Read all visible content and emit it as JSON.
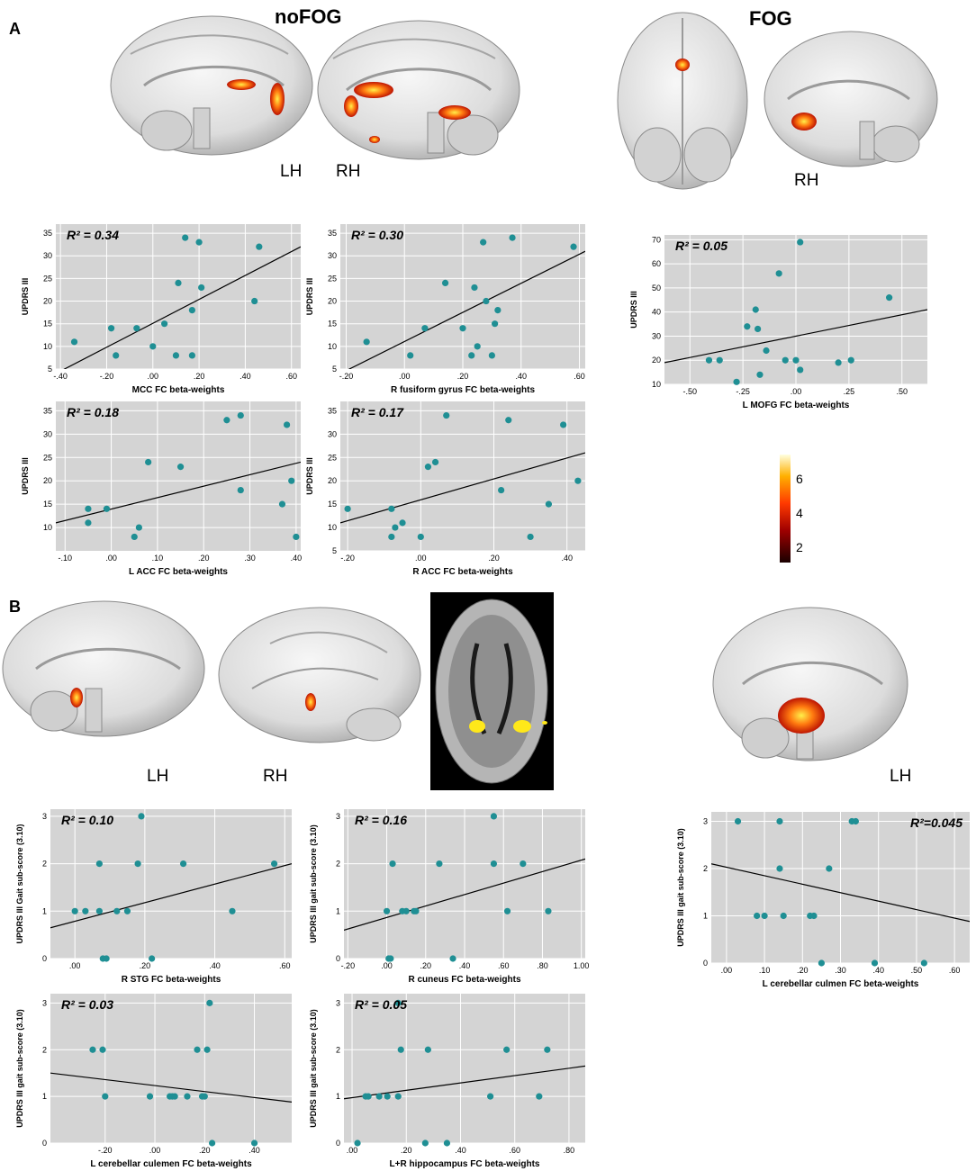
{
  "panel_a": {
    "letter": "A",
    "nofog_title": "noFOG",
    "fog_title": "FOG",
    "nofog_hemis": [
      "LH",
      "RH"
    ],
    "fog_hemi": "RH",
    "colorbar_ticks": [
      "6",
      "4",
      "2"
    ]
  },
  "panel_b": {
    "letter": "B",
    "nofog_hemis": [
      "LH",
      "RH"
    ],
    "fog_hemi": "LH"
  },
  "colors": {
    "point": "#1f8f94",
    "plot_bg": "#d4d4d4",
    "grid": "#ffffff",
    "fit_line": "#000000"
  },
  "chart_data": [
    {
      "id": "a1",
      "type": "scatter",
      "r2_label": "R² = 0.34",
      "r2_pos": "top-left",
      "xlabel": "MCC  FC beta-weights",
      "ylabel": "UPDRS III",
      "xlim": [
        -0.42,
        0.64
      ],
      "ylim": [
        5,
        37
      ],
      "xticks": [
        -0.4,
        -0.2,
        0.0,
        0.2,
        0.4,
        0.6
      ],
      "xtick_labels": [
        "-.40",
        "-.20",
        ".00",
        ".20",
        ".40",
        ".60"
      ],
      "yticks": [
        5,
        10,
        15,
        20,
        25,
        30,
        35
      ],
      "ytick_labels": [
        "5",
        "10",
        "15",
        "20",
        "25",
        "30",
        "35"
      ],
      "points": [
        [
          -0.34,
          11
        ],
        [
          -0.18,
          14
        ],
        [
          -0.16,
          8
        ],
        [
          -0.07,
          14
        ],
        [
          0.0,
          10
        ],
        [
          0.05,
          15
        ],
        [
          0.1,
          8
        ],
        [
          0.11,
          24
        ],
        [
          0.14,
          34
        ],
        [
          0.17,
          18
        ],
        [
          0.17,
          8
        ],
        [
          0.2,
          33
        ],
        [
          0.21,
          23
        ],
        [
          0.44,
          20
        ],
        [
          0.46,
          32
        ]
      ],
      "fit": [
        [
          -0.42,
          4
        ],
        [
          0.64,
          32
        ]
      ]
    },
    {
      "id": "a2",
      "type": "scatter",
      "r2_label": "R² = 0.30",
      "r2_pos": "top-left",
      "xlabel": "R fusiform gyrus FC beta-weights",
      "ylabel": "UPDRS III",
      "xlim": [
        -0.22,
        0.62
      ],
      "ylim": [
        5,
        37
      ],
      "xticks": [
        -0.2,
        0.0,
        0.2,
        0.4,
        0.6
      ],
      "xtick_labels": [
        "-.20",
        ".00",
        ".20",
        ".40",
        ".60"
      ],
      "yticks": [
        5,
        10,
        15,
        20,
        25,
        30,
        35
      ],
      "ytick_labels": [
        "5",
        "10",
        "15",
        "20",
        "25",
        "30",
        "35"
      ],
      "points": [
        [
          -0.13,
          11
        ],
        [
          0.02,
          8
        ],
        [
          0.07,
          14
        ],
        [
          0.14,
          24
        ],
        [
          0.2,
          14
        ],
        [
          0.23,
          8
        ],
        [
          0.24,
          23
        ],
        [
          0.25,
          10
        ],
        [
          0.27,
          33
        ],
        [
          0.28,
          20
        ],
        [
          0.3,
          8
        ],
        [
          0.31,
          15
        ],
        [
          0.32,
          18
        ],
        [
          0.37,
          34
        ],
        [
          0.58,
          32
        ]
      ],
      "fit": [
        [
          -0.22,
          4
        ],
        [
          0.62,
          31
        ]
      ]
    },
    {
      "id": "a3",
      "type": "scatter",
      "r2_label": "R² = 0.05",
      "r2_pos": "top-left",
      "xlabel": "L MOFG FC beta-weights",
      "ylabel": "UPDRS III",
      "xlim": [
        -0.62,
        0.62
      ],
      "ylim": [
        10,
        72
      ],
      "xticks": [
        -0.5,
        -0.25,
        0.0,
        0.25,
        0.5
      ],
      "xtick_labels": [
        "-.50",
        "-.25",
        ".00",
        ".25",
        ".50"
      ],
      "yticks": [
        10,
        20,
        30,
        40,
        50,
        60,
        70
      ],
      "ytick_labels": [
        "10",
        "20",
        "30",
        "40",
        "50",
        "60",
        "70"
      ],
      "points": [
        [
          -0.41,
          20
        ],
        [
          -0.36,
          20
        ],
        [
          -0.28,
          11
        ],
        [
          -0.23,
          34
        ],
        [
          -0.19,
          41
        ],
        [
          -0.18,
          33
        ],
        [
          -0.17,
          14
        ],
        [
          -0.14,
          24
        ],
        [
          -0.08,
          56
        ],
        [
          -0.05,
          20
        ],
        [
          0.0,
          20
        ],
        [
          0.02,
          69
        ],
        [
          0.02,
          16
        ],
        [
          0.2,
          19
        ],
        [
          0.26,
          20
        ],
        [
          0.44,
          46
        ]
      ],
      "fit": [
        [
          -0.62,
          19
        ],
        [
          0.62,
          41
        ]
      ]
    },
    {
      "id": "a4",
      "type": "scatter",
      "r2_label": "R² = 0.18",
      "r2_pos": "top-left",
      "xlabel": "L ACC FC beta-weights",
      "ylabel": "UPDRS III",
      "xlim": [
        -0.12,
        0.41
      ],
      "ylim": [
        5,
        37
      ],
      "xticks": [
        -0.1,
        0.0,
        0.1,
        0.2,
        0.3,
        0.4
      ],
      "xtick_labels": [
        "-.10",
        ".00",
        ".10",
        ".20",
        ".30",
        ".40"
      ],
      "yticks": [
        10,
        15,
        20,
        25,
        30,
        35
      ],
      "ytick_labels": [
        "10",
        "15",
        "20",
        "25",
        "30",
        "35"
      ],
      "points": [
        [
          -0.05,
          14
        ],
        [
          -0.05,
          11
        ],
        [
          -0.01,
          14
        ],
        [
          0.05,
          8
        ],
        [
          0.06,
          10
        ],
        [
          0.08,
          24
        ],
        [
          0.15,
          23
        ],
        [
          0.25,
          33
        ],
        [
          0.28,
          34
        ],
        [
          0.28,
          18
        ],
        [
          0.37,
          15
        ],
        [
          0.38,
          32
        ],
        [
          0.39,
          20
        ],
        [
          0.4,
          8
        ]
      ],
      "fit": [
        [
          -0.12,
          11
        ],
        [
          0.41,
          24
        ]
      ]
    },
    {
      "id": "a5",
      "type": "scatter",
      "r2_label": "R² = 0.17",
      "r2_pos": "top-left",
      "xlabel": "R ACC FC beta-weights",
      "ylabel": "UPDRS III",
      "xlim": [
        -0.22,
        0.45
      ],
      "ylim": [
        5,
        37
      ],
      "xticks": [
        -0.2,
        0.0,
        0.2,
        0.4
      ],
      "xtick_labels": [
        "-.20",
        ".00",
        ".20",
        ".40"
      ],
      "yticks": [
        5,
        10,
        15,
        20,
        25,
        30,
        35
      ],
      "ytick_labels": [
        "5",
        "10",
        "15",
        "20",
        "25",
        "30",
        "35"
      ],
      "points": [
        [
          -0.2,
          14
        ],
        [
          -0.08,
          14
        ],
        [
          -0.08,
          8
        ],
        [
          -0.07,
          10
        ],
        [
          -0.05,
          11
        ],
        [
          0.0,
          8
        ],
        [
          0.02,
          23
        ],
        [
          0.04,
          24
        ],
        [
          0.07,
          34
        ],
        [
          0.22,
          18
        ],
        [
          0.24,
          33
        ],
        [
          0.3,
          8
        ],
        [
          0.35,
          15
        ],
        [
          0.39,
          32
        ],
        [
          0.43,
          20
        ]
      ],
      "fit": [
        [
          -0.22,
          11
        ],
        [
          0.45,
          26
        ]
      ]
    },
    {
      "id": "b1",
      "type": "scatter",
      "r2_label": "R² = 0.10",
      "r2_pos": "top-left",
      "xlabel": "R STG FC beta-weights",
      "ylabel": "UPDRS III Gait sub-score (3.10)",
      "xlim": [
        -0.07,
        0.62
      ],
      "ylim": [
        0,
        3.15
      ],
      "xticks": [
        0.0,
        0.2,
        0.4,
        0.6
      ],
      "xtick_labels": [
        ".00",
        ".20",
        ".40",
        ".60"
      ],
      "yticks": [
        0,
        1,
        2,
        3
      ],
      "ytick_labels": [
        "0",
        "1",
        "2",
        "3"
      ],
      "points": [
        [
          0.0,
          1
        ],
        [
          0.03,
          1
        ],
        [
          0.07,
          2
        ],
        [
          0.07,
          1
        ],
        [
          0.08,
          0
        ],
        [
          0.09,
          0
        ],
        [
          0.12,
          1
        ],
        [
          0.15,
          1
        ],
        [
          0.18,
          2
        ],
        [
          0.19,
          3
        ],
        [
          0.22,
          0
        ],
        [
          0.31,
          2
        ],
        [
          0.45,
          1
        ],
        [
          0.57,
          2
        ]
      ],
      "fit": [
        [
          -0.07,
          0.65
        ],
        [
          0.62,
          2.0
        ]
      ]
    },
    {
      "id": "b2",
      "type": "scatter",
      "r2_label": "R² = 0.16",
      "r2_pos": "top-left",
      "xlabel": "R cuneus FC beta-weights",
      "ylabel": "UPDRS III gait sub-score (3.10)",
      "xlim": [
        -0.22,
        1.02
      ],
      "ylim": [
        0,
        3.15
      ],
      "xticks": [
        -0.2,
        0.0,
        0.2,
        0.4,
        0.6,
        0.8,
        1.0
      ],
      "xtick_labels": [
        "-.20",
        ".00",
        ".20",
        ".40",
        ".60",
        ".80",
        "1.00"
      ],
      "yticks": [
        0,
        1,
        2,
        3
      ],
      "ytick_labels": [
        "0",
        "1",
        "2",
        "3"
      ],
      "points": [
        [
          0.0,
          1
        ],
        [
          0.01,
          0
        ],
        [
          0.02,
          0
        ],
        [
          0.03,
          2
        ],
        [
          0.08,
          1
        ],
        [
          0.1,
          1
        ],
        [
          0.14,
          1
        ],
        [
          0.15,
          1
        ],
        [
          0.27,
          2
        ],
        [
          0.34,
          0
        ],
        [
          0.55,
          3
        ],
        [
          0.55,
          2
        ],
        [
          0.62,
          1
        ],
        [
          0.7,
          2
        ],
        [
          0.83,
          1
        ]
      ],
      "fit": [
        [
          -0.22,
          0.6
        ],
        [
          1.02,
          2.1
        ]
      ]
    },
    {
      "id": "b3",
      "type": "scatter",
      "r2_label": "R²=0.045",
      "r2_pos": "top-right",
      "xlabel": "L cerebellar culmen FC beta-weights",
      "ylabel": "UPDRS III gait sub-score (3.10)",
      "xlim": [
        -0.04,
        0.64
      ],
      "ylim": [
        0,
        3.2
      ],
      "xticks": [
        0.0,
        0.1,
        0.2,
        0.3,
        0.4,
        0.5,
        0.6
      ],
      "xtick_labels": [
        ".00",
        ".10",
        ".20",
        ".30",
        ".40",
        ".50",
        ".60"
      ],
      "yticks": [
        0,
        1,
        2,
        3
      ],
      "ytick_labels": [
        "0",
        "1",
        "2",
        "3"
      ],
      "points": [
        [
          0.03,
          3
        ],
        [
          0.08,
          1
        ],
        [
          0.1,
          1
        ],
        [
          0.14,
          2
        ],
        [
          0.14,
          3
        ],
        [
          0.15,
          1
        ],
        [
          0.22,
          1
        ],
        [
          0.23,
          1
        ],
        [
          0.25,
          0
        ],
        [
          0.27,
          2
        ],
        [
          0.33,
          3
        ],
        [
          0.34,
          3
        ],
        [
          0.39,
          0
        ],
        [
          0.52,
          0
        ]
      ],
      "fit": [
        [
          -0.04,
          2.1
        ],
        [
          0.64,
          0.88
        ]
      ]
    },
    {
      "id": "b4",
      "type": "scatter",
      "r2_label": "R² = 0.03",
      "r2_pos": "top-left",
      "xlabel": "L cerebellar culemen FC beta-weights",
      "ylabel": "UPDRS III gait sub-score (3.10)",
      "xlim": [
        -0.42,
        0.55
      ],
      "ylim": [
        0,
        3.2
      ],
      "xticks": [
        -0.2,
        0.0,
        0.2,
        0.4
      ],
      "xtick_labels": [
        "-.20",
        ".00",
        ".20",
        ".40"
      ],
      "yticks": [
        0,
        1,
        2,
        3
      ],
      "ytick_labels": [
        "0",
        "1",
        "2",
        "3"
      ],
      "points": [
        [
          -0.25,
          2
        ],
        [
          -0.21,
          2
        ],
        [
          -0.2,
          1
        ],
        [
          -0.02,
          1
        ],
        [
          0.06,
          1
        ],
        [
          0.07,
          1
        ],
        [
          0.08,
          1
        ],
        [
          0.13,
          1
        ],
        [
          0.17,
          2
        ],
        [
          0.19,
          1
        ],
        [
          0.2,
          1
        ],
        [
          0.21,
          2
        ],
        [
          0.22,
          3
        ],
        [
          0.23,
          0
        ],
        [
          0.4,
          0
        ]
      ],
      "fit": [
        [
          -0.42,
          1.5
        ],
        [
          0.55,
          0.88
        ]
      ]
    },
    {
      "id": "b5",
      "type": "scatter",
      "r2_label": "R² = 0.05",
      "r2_pos": "top-left",
      "xlabel": "L+R hippocampus FC beta-weights",
      "ylabel": "UPDRS III gait sub-score (3.10)",
      "xlim": [
        -0.03,
        0.86
      ],
      "ylim": [
        0,
        3.2
      ],
      "xticks": [
        0.0,
        0.2,
        0.4,
        0.6,
        0.8
      ],
      "xtick_labels": [
        ".00",
        ".20",
        ".40",
        ".60",
        ".80"
      ],
      "yticks": [
        0,
        1,
        2,
        3
      ],
      "ytick_labels": [
        "0",
        "1",
        "2",
        "3"
      ],
      "points": [
        [
          0.02,
          0
        ],
        [
          0.05,
          1
        ],
        [
          0.06,
          1
        ],
        [
          0.1,
          1
        ],
        [
          0.13,
          1
        ],
        [
          0.17,
          1
        ],
        [
          0.17,
          3
        ],
        [
          0.18,
          2
        ],
        [
          0.27,
          0
        ],
        [
          0.28,
          2
        ],
        [
          0.35,
          0
        ],
        [
          0.51,
          1
        ],
        [
          0.57,
          2
        ],
        [
          0.69,
          1
        ],
        [
          0.72,
          2
        ]
      ],
      "fit": [
        [
          -0.03,
          0.95
        ],
        [
          0.86,
          1.65
        ]
      ]
    }
  ]
}
